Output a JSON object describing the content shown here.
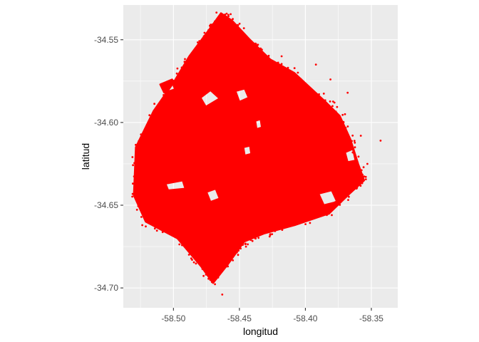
{
  "chart_data": {
    "type": "scatter",
    "title": "",
    "xlabel": "longitud",
    "ylabel": "latitud",
    "xlim": [
      -58.538,
      -58.33
    ],
    "ylim": [
      -34.712,
      -34.529
    ],
    "x_ticks": [
      -58.5,
      -58.45,
      -58.4,
      -58.35
    ],
    "x_tick_labels": [
      "-58.50",
      "-58.45",
      "-58.40",
      "-58.35"
    ],
    "y_ticks": [
      -34.55,
      -34.6,
      -34.65,
      -34.7
    ],
    "y_tick_labels": [
      "-34.55",
      "-34.60",
      "-34.65",
      "-34.70"
    ],
    "grid": true,
    "legend": "none",
    "point_color": "#FF0000",
    "panel_color": "#EBEBEB",
    "gridline_color": "#FFFFFF",
    "coverage_outline": [
      [
        -58.464,
        -34.534
      ],
      [
        -58.4555,
        -34.5385
      ],
      [
        -58.442,
        -34.55
      ],
      [
        -58.4265,
        -34.562
      ],
      [
        -58.4085,
        -34.57
      ],
      [
        -58.3855,
        -34.587
      ],
      [
        -58.374,
        -34.596
      ],
      [
        -58.366,
        -34.61
      ],
      [
        -58.36,
        -34.625
      ],
      [
        -58.3555,
        -34.635
      ],
      [
        -58.3665,
        -34.643
      ],
      [
        -58.382,
        -34.655
      ],
      [
        -58.408,
        -34.662
      ],
      [
        -58.431,
        -34.667
      ],
      [
        -58.4465,
        -34.672
      ],
      [
        -58.459,
        -34.686
      ],
      [
        -58.47,
        -34.697
      ],
      [
        -58.479,
        -34.687
      ],
      [
        -58.497,
        -34.67
      ],
      [
        -58.521,
        -34.66
      ],
      [
        -58.53,
        -34.644
      ],
      [
        -58.5285,
        -34.615
      ],
      [
        -58.515,
        -34.593
      ],
      [
        -58.5,
        -34.576
      ],
      [
        -58.488,
        -34.56
      ],
      [
        -58.473,
        -34.544
      ]
    ],
    "coverage_gaps": [
      [
        [
          -58.4795,
          -34.585
        ],
        [
          -58.472,
          -34.5805
        ],
        [
          -58.465,
          -34.5855
        ],
        [
          -58.4755,
          -34.5905
        ]
      ],
      [
        [
          -58.453,
          -34.581
        ],
        [
          -58.446,
          -34.5795
        ],
        [
          -58.443,
          -34.585
        ],
        [
          -58.45,
          -34.5875
        ]
      ],
      [
        [
          -58.51,
          -34.577
        ],
        [
          -58.501,
          -34.574
        ],
        [
          -58.499,
          -34.58
        ],
        [
          -58.507,
          -34.582
        ]
      ],
      [
        [
          -58.506,
          -34.637
        ],
        [
          -58.493,
          -34.635
        ],
        [
          -58.491,
          -34.64
        ],
        [
          -58.504,
          -34.641
        ]
      ],
      [
        [
          -58.475,
          -34.642
        ],
        [
          -58.468,
          -34.64
        ],
        [
          -58.465,
          -34.646
        ],
        [
          -58.472,
          -34.648
        ]
      ],
      [
        [
          -58.438,
          -34.599
        ],
        [
          -58.434,
          -34.598
        ],
        [
          -58.433,
          -34.603
        ],
        [
          -58.437,
          -34.604
        ]
      ],
      [
        [
          -58.447,
          -34.615
        ],
        [
          -58.442,
          -34.614
        ],
        [
          -58.441,
          -34.619
        ],
        [
          -58.446,
          -34.62
        ]
      ],
      [
        [
          -58.39,
          -34.643
        ],
        [
          -58.38,
          -34.641
        ],
        [
          -58.376,
          -34.648
        ],
        [
          -58.386,
          -34.65
        ]
      ],
      [
        [
          -58.37,
          -34.618
        ],
        [
          -58.364,
          -34.616
        ],
        [
          -58.362,
          -34.623
        ],
        [
          -58.368,
          -34.624
        ]
      ]
    ],
    "outlier_points": [
      [
        -58.343,
        -34.611
      ],
      [
        -58.353,
        -34.625
      ],
      [
        -58.368,
        -34.582
      ],
      [
        -58.381,
        -34.574
      ],
      [
        -58.392,
        -34.565
      ],
      [
        -58.433,
        -34.556
      ],
      [
        -58.418,
        -34.56
      ],
      [
        -58.463,
        -34.704
      ],
      [
        -58.451,
        -34.68
      ],
      [
        -58.445,
        -34.675
      ],
      [
        -58.438,
        -34.67
      ],
      [
        -58.46,
        -34.536
      ],
      [
        -58.37,
        -34.595
      ],
      [
        -58.358,
        -34.608
      ],
      [
        -58.378,
        -34.588
      ]
    ]
  }
}
